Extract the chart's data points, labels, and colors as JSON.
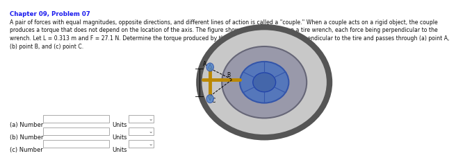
{
  "title": "Chapter 09, Problem 07",
  "body_lines": [
    "A pair of forces with equal magnitudes, opposite directions, and different lines of action is called a \"couple.\" When a couple acts on a rigid object, the couple",
    "produces a torque that does not depend on the location of the axis. The figure shows a couple acting on a tire wrench, each force being perpendicular to the",
    "wrench. Let L = 0.313 m and F = 27.1 N. Determine the torque produced by the couple when the axis is perpendicular to the tire and passes through (a) point A,",
    "(b) point B, and (c) point C."
  ],
  "labels": [
    "(a)",
    "(b)",
    "(c)"
  ],
  "field_label": "Number",
  "units_label": "Units",
  "bg_color": "#ffffff",
  "title_color": "#1a1aee",
  "body_color": "#111111",
  "title_fontsize": 6.2,
  "body_fontsize": 5.6,
  "label_fontsize": 6.0,
  "tire_color": "#aaaaaa",
  "tire_dark": "#777777",
  "tire_edge": "#555555",
  "hub_color": "#5577cc",
  "hub_edge": "#3355aa",
  "wrench_color": "#bb8800",
  "blue_handle": "#5588cc"
}
